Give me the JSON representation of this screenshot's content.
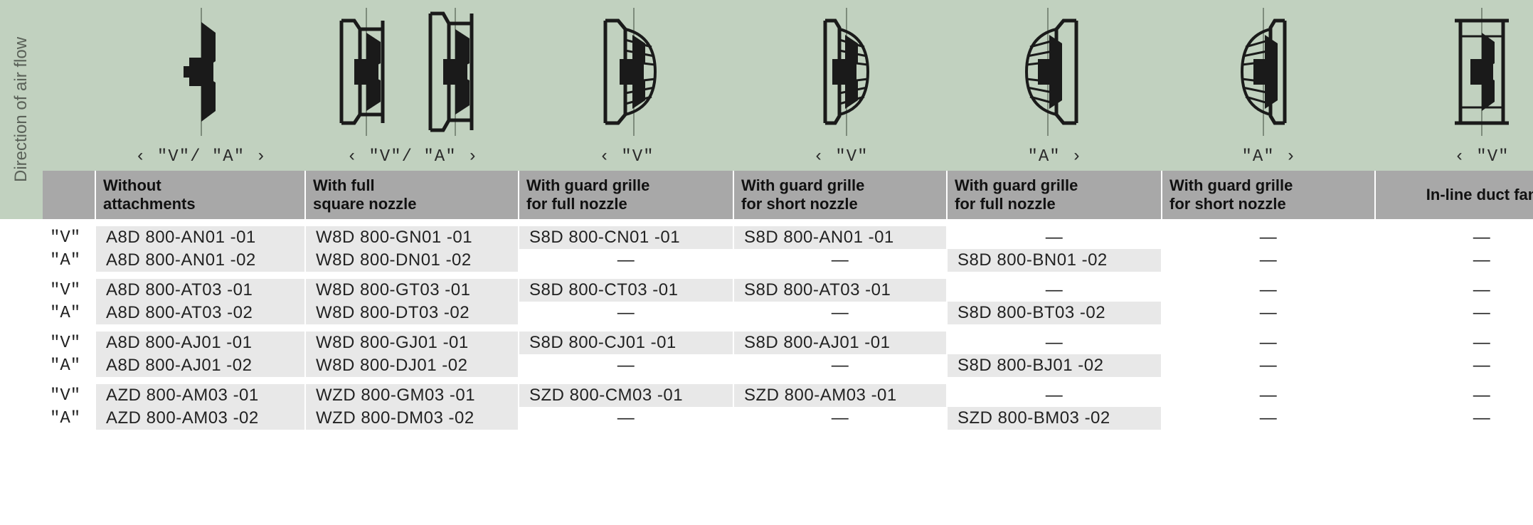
{
  "y_axis_label": "Direction of air flow",
  "colors": {
    "background_green": "#c1d1bf",
    "header_grey": "#a8a8a8",
    "cell_grey": "#e8e8e8",
    "text": "#222222"
  },
  "columns": [
    {
      "dir_label": "‹ \"V\"/ \"A\" ›",
      "header": "Without\nattachments"
    },
    {
      "dir_label": "‹ \"V\"/ \"A\" ›",
      "header": "With full\nsquare nozzle"
    },
    {
      "dir_label": "‹ \"V\"",
      "header": "With guard grille\nfor full nozzle"
    },
    {
      "dir_label": "‹ \"V\"",
      "header": "With guard grille\nfor short nozzle"
    },
    {
      "dir_label": "\"A\" ›",
      "header": "With guard grille\nfor full nozzle"
    },
    {
      "dir_label": "\"A\" ›",
      "header": "With guard grille\nfor short nozzle"
    },
    {
      "dir_label": "‹ \"V\"",
      "header": "In-line duct fan"
    }
  ],
  "row_labels": [
    "\"V\"",
    "\"A\"",
    "\"V\"",
    "\"A\"",
    "\"V\"",
    "\"A\"",
    "\"V\"",
    "\"A\""
  ],
  "rows": [
    [
      "A8D 800-AN01  -01",
      "W8D 800-GN01  -01",
      "S8D 800-CN01  -01",
      "S8D 800-AN01  -01",
      "—",
      "—",
      "—"
    ],
    [
      "A8D 800-AN01  -02",
      "W8D 800-DN01  -02",
      "—",
      "—",
      "S8D 800-BN01  -02",
      "—",
      "—"
    ],
    [
      "A8D 800-AT03  -01",
      "W8D 800-GT03  -01",
      "S8D 800-CT03  -01",
      "S8D 800-AT03  -01",
      "—",
      "—",
      "—"
    ],
    [
      "A8D 800-AT03  -02",
      "W8D 800-DT03  -02",
      "—",
      "—",
      "S8D 800-BT03  -02",
      "—",
      "—"
    ],
    [
      "A8D 800-AJ01  -01",
      "W8D 800-GJ01  -01",
      "S8D 800-CJ01  -01",
      "S8D 800-AJ01  -01",
      "—",
      "—",
      "—"
    ],
    [
      "A8D 800-AJ01  -02",
      "W8D 800-DJ01  -02",
      "—",
      "—",
      "S8D 800-BJ01  -02",
      "—",
      "—"
    ],
    [
      "AZD 800-AM03 -01",
      "WZD 800-GM03 -01",
      "SZD 800-CM03 -01",
      "SZD 800-AM03 -01",
      "—",
      "—",
      "—"
    ],
    [
      "AZD 800-AM03 -02",
      "WZD 800-DM03 -02",
      "—",
      "—",
      "SZD 800-BM03 -02",
      "—",
      "—"
    ]
  ],
  "cell_bg": [
    [
      "g",
      "g",
      "g",
      "g",
      "w",
      "w",
      "w"
    ],
    [
      "g",
      "g",
      "w",
      "w",
      "g",
      "w",
      "w"
    ],
    [
      "g",
      "g",
      "g",
      "g",
      "w",
      "w",
      "w"
    ],
    [
      "g",
      "g",
      "w",
      "w",
      "g",
      "w",
      "w"
    ],
    [
      "g",
      "g",
      "g",
      "g",
      "w",
      "w",
      "w"
    ],
    [
      "g",
      "g",
      "w",
      "w",
      "g",
      "w",
      "w"
    ],
    [
      "g",
      "g",
      "g",
      "g",
      "w",
      "w",
      "w"
    ],
    [
      "g",
      "g",
      "w",
      "w",
      "g",
      "w",
      "w"
    ]
  ],
  "icon_style": {
    "stroke": "#1a1a1a",
    "fill": "#1a1a1a",
    "centerline": "#7e8c7c"
  }
}
